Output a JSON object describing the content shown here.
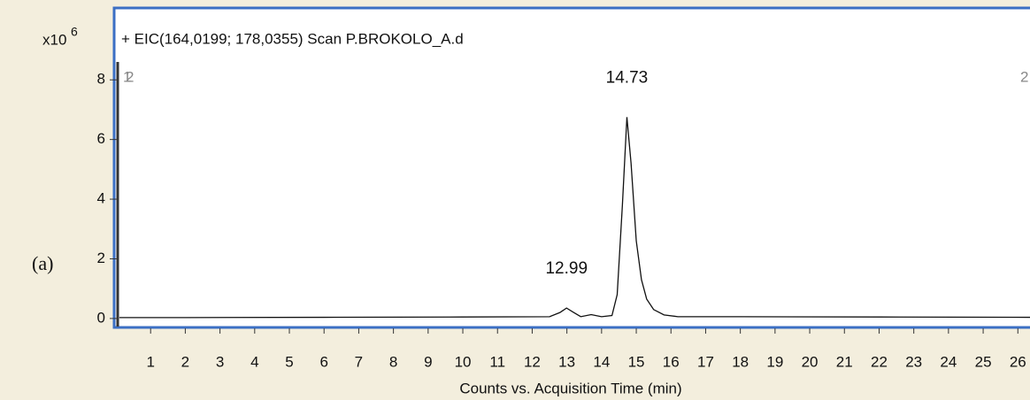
{
  "panel_label": "(a)",
  "chart_data": {
    "type": "line",
    "title": "+ EIC(164,0199; 178,0355) Scan P.BROKOLO_A.d",
    "y_multiplier": "x10",
    "y_exponent": "6",
    "x_label": "Counts vs. Acquisition Time (min)",
    "xlim": [
      0,
      26.35
    ],
    "ylim": [
      -0.3,
      8.6
    ],
    "xticks": [
      1,
      2,
      3,
      4,
      5,
      6,
      7,
      8,
      9,
      10,
      11,
      12,
      13,
      14,
      15,
      16,
      17,
      18,
      19,
      20,
      21,
      22,
      23,
      24,
      25,
      26
    ],
    "yticks": [
      0,
      2,
      4,
      6,
      8
    ],
    "cursor_labels": [
      "1",
      "2",
      "2"
    ],
    "series": [
      {
        "name": "EIC",
        "color": "#111111",
        "x": [
          0.1,
          2,
          6,
          10,
          12.5,
          12.8,
          12.99,
          13.2,
          13.4,
          13.7,
          14.0,
          14.3,
          14.45,
          14.6,
          14.73,
          14.85,
          15.0,
          15.15,
          15.3,
          15.5,
          15.8,
          16.2,
          18,
          22,
          26.35
        ],
        "values": [
          0.03,
          0.03,
          0.04,
          0.05,
          0.06,
          0.2,
          0.35,
          0.2,
          0.06,
          0.13,
          0.06,
          0.1,
          0.8,
          3.8,
          6.75,
          5.2,
          2.6,
          1.3,
          0.65,
          0.3,
          0.12,
          0.06,
          0.06,
          0.05,
          0.04
        ]
      }
    ],
    "annotations": [
      {
        "text": "14.73",
        "x": 14.73,
        "y": 6.75
      },
      {
        "text": "12.99",
        "x": 12.99,
        "y": 0.35
      }
    ]
  }
}
